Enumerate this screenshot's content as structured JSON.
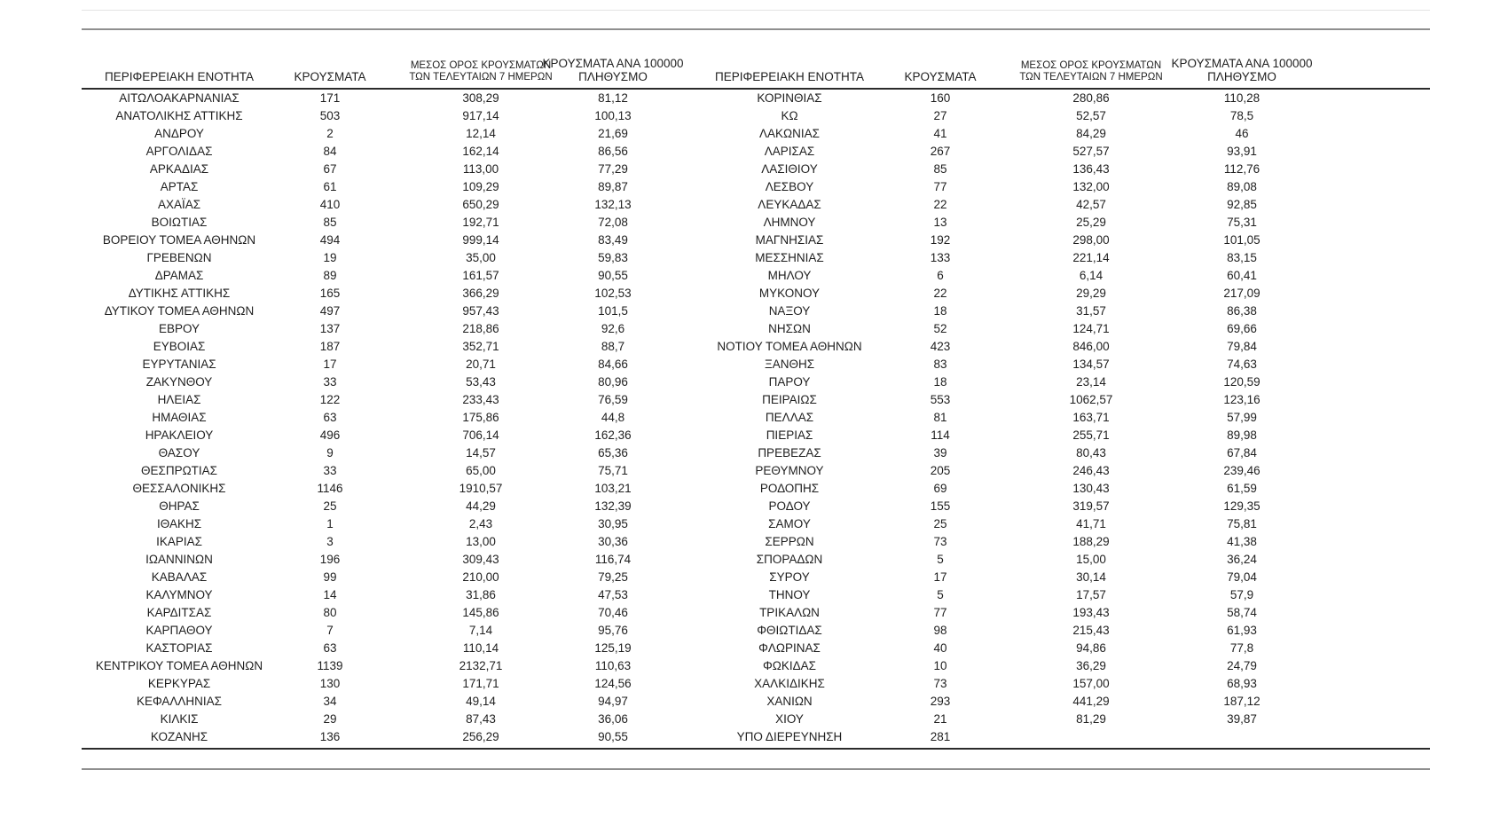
{
  "table": {
    "headers": {
      "region": "ΠΕΡΙΦΕΡΕΙΑΚΗ ΕΝΟΤΗΤΑ",
      "cases": "ΚΡΟΥΣΜΑΤΑ",
      "avg7_line1": "ΜΕΣΟΣ ΟΡΟΣ ΚΡΟΥΣΜΑΤΩΝ",
      "avg7_line2": "ΤΩΝ ΤΕΛΕΥΤΑΙΩΝ 7 ΗΜΕΡΩΝ",
      "per100k_line1": "ΚΡΟΥΣΜΑΤΑ ΑΝΑ 100000",
      "per100k_line2": "ΠΛΗΘΥΣΜΟ"
    },
    "left_rows": [
      [
        "ΑΙΤΩΛΟΑΚΑΡΝΑΝΙΑΣ",
        "171",
        "308,29",
        "81,12"
      ],
      [
        "ΑΝΑΤΟΛΙΚΗΣ ΑΤΤΙΚΗΣ",
        "503",
        "917,14",
        "100,13"
      ],
      [
        "ΑΝΔΡΟΥ",
        "2",
        "12,14",
        "21,69"
      ],
      [
        "ΑΡΓΟΛΙΔΑΣ",
        "84",
        "162,14",
        "86,56"
      ],
      [
        "ΑΡΚΑΔΙΑΣ",
        "67",
        "113,00",
        "77,29"
      ],
      [
        "ΑΡΤΑΣ",
        "61",
        "109,29",
        "89,87"
      ],
      [
        "ΑΧΑΪΑΣ",
        "410",
        "650,29",
        "132,13"
      ],
      [
        "ΒΟΙΩΤΙΑΣ",
        "85",
        "192,71",
        "72,08"
      ],
      [
        "ΒΟΡΕΙΟΥ ΤΟΜΕΑ ΑΘΗΝΩΝ",
        "494",
        "999,14",
        "83,49"
      ],
      [
        "ΓΡΕΒΕΝΩΝ",
        "19",
        "35,00",
        "59,83"
      ],
      [
        "ΔΡΑΜΑΣ",
        "89",
        "161,57",
        "90,55"
      ],
      [
        "ΔΥΤΙΚΗΣ ΑΤΤΙΚΗΣ",
        "165",
        "366,29",
        "102,53"
      ],
      [
        "ΔΥΤΙΚΟΥ ΤΟΜΕΑ ΑΘΗΝΩΝ",
        "497",
        "957,43",
        "101,5"
      ],
      [
        "ΕΒΡΟΥ",
        "137",
        "218,86",
        "92,6"
      ],
      [
        "ΕΥΒΟΙΑΣ",
        "187",
        "352,71",
        "88,7"
      ],
      [
        "ΕΥΡΥΤΑΝΙΑΣ",
        "17",
        "20,71",
        "84,66"
      ],
      [
        "ΖΑΚΥΝΘΟΥ",
        "33",
        "53,43",
        "80,96"
      ],
      [
        "ΗΛΕΙΑΣ",
        "122",
        "233,43",
        "76,59"
      ],
      [
        "ΗΜΑΘΙΑΣ",
        "63",
        "175,86",
        "44,8"
      ],
      [
        "ΗΡΑΚΛΕΙΟΥ",
        "496",
        "706,14",
        "162,36"
      ],
      [
        "ΘΑΣΟΥ",
        "9",
        "14,57",
        "65,36"
      ],
      [
        "ΘΕΣΠΡΩΤΙΑΣ",
        "33",
        "65,00",
        "75,71"
      ],
      [
        "ΘΕΣΣΑΛΟΝΙΚΗΣ",
        "1146",
        "1910,57",
        "103,21"
      ],
      [
        "ΘΗΡΑΣ",
        "25",
        "44,29",
        "132,39"
      ],
      [
        "ΙΘΑΚΗΣ",
        "1",
        "2,43",
        "30,95"
      ],
      [
        "ΙΚΑΡΙΑΣ",
        "3",
        "13,00",
        "30,36"
      ],
      [
        "ΙΩΑΝΝΙΝΩΝ",
        "196",
        "309,43",
        "116,74"
      ],
      [
        "ΚΑΒΑΛΑΣ",
        "99",
        "210,00",
        "79,25"
      ],
      [
        "ΚΑΛΥΜΝΟΥ",
        "14",
        "31,86",
        "47,53"
      ],
      [
        "ΚΑΡΔΙΤΣΑΣ",
        "80",
        "145,86",
        "70,46"
      ],
      [
        "ΚΑΡΠΑΘΟΥ",
        "7",
        "7,14",
        "95,76"
      ],
      [
        "ΚΑΣΤΟΡΙΑΣ",
        "63",
        "110,14",
        "125,19"
      ],
      [
        "ΚΕΝΤΡΙΚΟΥ ΤΟΜΕΑ ΑΘΗΝΩΝ",
        "1139",
        "2132,71",
        "110,63"
      ],
      [
        "ΚΕΡΚΥΡΑΣ",
        "130",
        "171,71",
        "124,56"
      ],
      [
        "ΚΕΦΑΛΛΗΝΙΑΣ",
        "34",
        "49,14",
        "94,97"
      ],
      [
        "ΚΙΛΚΙΣ",
        "29",
        "87,43",
        "36,06"
      ],
      [
        "ΚΟΖΑΝΗΣ",
        "136",
        "256,29",
        "90,55"
      ]
    ],
    "right_rows": [
      [
        "ΚΟΡΙΝΘΙΑΣ",
        "160",
        "280,86",
        "110,28"
      ],
      [
        "ΚΩ",
        "27",
        "52,57",
        "78,5"
      ],
      [
        "ΛΑΚΩΝΙΑΣ",
        "41",
        "84,29",
        "46"
      ],
      [
        "ΛΑΡΙΣΑΣ",
        "267",
        "527,57",
        "93,91"
      ],
      [
        "ΛΑΣΙΘΙΟΥ",
        "85",
        "136,43",
        "112,76"
      ],
      [
        "ΛΕΣΒΟΥ",
        "77",
        "132,00",
        "89,08"
      ],
      [
        "ΛΕΥΚΑΔΑΣ",
        "22",
        "42,57",
        "92,85"
      ],
      [
        "ΛΗΜΝΟΥ",
        "13",
        "25,29",
        "75,31"
      ],
      [
        "ΜΑΓΝΗΣΙΑΣ",
        "192",
        "298,00",
        "101,05"
      ],
      [
        "ΜΕΣΣΗΝΙΑΣ",
        "133",
        "221,14",
        "83,15"
      ],
      [
        "ΜΗΛΟΥ",
        "6",
        "6,14",
        "60,41"
      ],
      [
        "ΜΥΚΟΝΟΥ",
        "22",
        "29,29",
        "217,09"
      ],
      [
        "ΝΑΞΟΥ",
        "18",
        "31,57",
        "86,38"
      ],
      [
        "ΝΗΣΩΝ",
        "52",
        "124,71",
        "69,66"
      ],
      [
        "ΝΟΤΙΟΥ ΤΟΜΕΑ ΑΘΗΝΩΝ",
        "423",
        "846,00",
        "79,84"
      ],
      [
        "ΞΑΝΘΗΣ",
        "83",
        "134,57",
        "74,63"
      ],
      [
        "ΠΑΡΟΥ",
        "18",
        "23,14",
        "120,59"
      ],
      [
        "ΠΕΙΡΑΙΩΣ",
        "553",
        "1062,57",
        "123,16"
      ],
      [
        "ΠΕΛΛΑΣ",
        "81",
        "163,71",
        "57,99"
      ],
      [
        "ΠΙΕΡΙΑΣ",
        "114",
        "255,71",
        "89,98"
      ],
      [
        "ΠΡΕΒΕΖΑΣ",
        "39",
        "80,43",
        "67,84"
      ],
      [
        "ΡΕΘΥΜΝΟΥ",
        "205",
        "246,43",
        "239,46"
      ],
      [
        "ΡΟΔΟΠΗΣ",
        "69",
        "130,43",
        "61,59"
      ],
      [
        "ΡΟΔΟΥ",
        "155",
        "319,57",
        "129,35"
      ],
      [
        "ΣΑΜΟΥ",
        "25",
        "41,71",
        "75,81"
      ],
      [
        "ΣΕΡΡΩΝ",
        "73",
        "188,29",
        "41,38"
      ],
      [
        "ΣΠΟΡΑΔΩΝ",
        "5",
        "15,00",
        "36,24"
      ],
      [
        "ΣΥΡΟΥ",
        "17",
        "30,14",
        "79,04"
      ],
      [
        "ΤΗΝΟΥ",
        "5",
        "17,57",
        "57,9"
      ],
      [
        "ΤΡΙΚΑΛΩΝ",
        "77",
        "193,43",
        "58,74"
      ],
      [
        "ΦΘΙΩΤΙΔΑΣ",
        "98",
        "215,43",
        "61,93"
      ],
      [
        "ΦΛΩΡΙΝΑΣ",
        "40",
        "94,86",
        "77,8"
      ],
      [
        "ΦΩΚΙΔΑΣ",
        "10",
        "36,29",
        "24,79"
      ],
      [
        "ΧΑΛΚΙΔΙΚΗΣ",
        "73",
        "157,00",
        "68,93"
      ],
      [
        "ΧΑΝΙΩΝ",
        "293",
        "441,29",
        "187,12"
      ],
      [
        "ΧΙΟΥ",
        "21",
        "81,29",
        "39,87"
      ],
      [
        "ΥΠΟ ΔΙΕΡΕΥΝΗΣΗ",
        "281",
        "",
        ""
      ]
    ]
  },
  "colors": {
    "background": "#ffffff",
    "text": "#1f1f1f",
    "rule_dark": "#2b2b2b",
    "rule_gray": "#8f8f8f",
    "rule_light": "#e4e4e4"
  }
}
